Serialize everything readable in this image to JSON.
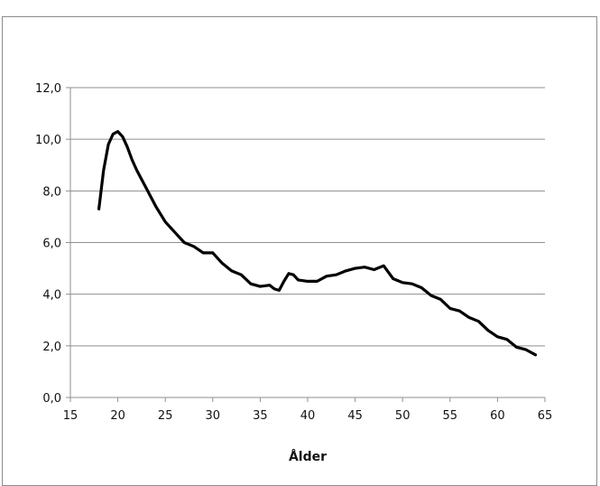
{
  "chart_data": {
    "type": "line",
    "title": "",
    "xlabel": "Ålder",
    "ylabel": "",
    "xlim": [
      15,
      65
    ],
    "ylim": [
      0,
      12
    ],
    "grid": true,
    "legend": "none",
    "x_ticks": [
      15,
      20,
      25,
      30,
      35,
      40,
      45,
      50,
      55,
      60,
      65
    ],
    "y_ticks": [
      0,
      2,
      4,
      6,
      8,
      10,
      12
    ],
    "x_tick_labels": [
      "15",
      "20",
      "25",
      "30",
      "35",
      "40",
      "45",
      "50",
      "55",
      "60",
      "65"
    ],
    "y_tick_labels": [
      "0,0",
      "2,0",
      "4,0",
      "6,0",
      "8,0",
      "10,0",
      "12,0"
    ],
    "series": [
      {
        "color": "#000000",
        "x": [
          18,
          18.5,
          19,
          19.5,
          20,
          20.5,
          21,
          21.5,
          22,
          23,
          24,
          25,
          26,
          27,
          28,
          29,
          30,
          31,
          32,
          33,
          34,
          35,
          36,
          36.5,
          37,
          37.5,
          38,
          38.5,
          39,
          40,
          41,
          42,
          43,
          44,
          45,
          46,
          47,
          48,
          49,
          50,
          51,
          52,
          53,
          54,
          55,
          56,
          57,
          58,
          59,
          60,
          61,
          62,
          63,
          64
        ],
        "y": [
          7.3,
          8.8,
          9.8,
          10.2,
          10.3,
          10.1,
          9.7,
          9.2,
          8.8,
          8.1,
          7.4,
          6.8,
          6.4,
          6.0,
          5.85,
          5.6,
          5.6,
          5.2,
          4.9,
          4.75,
          4.4,
          4.3,
          4.35,
          4.2,
          4.15,
          4.5,
          4.8,
          4.75,
          4.55,
          4.5,
          4.5,
          4.7,
          4.75,
          4.9,
          5.0,
          5.05,
          4.95,
          5.1,
          4.6,
          4.45,
          4.4,
          4.25,
          3.95,
          3.8,
          3.45,
          3.35,
          3.1,
          2.95,
          2.6,
          2.35,
          2.25,
          1.95,
          1.85,
          1.65
        ]
      }
    ]
  }
}
